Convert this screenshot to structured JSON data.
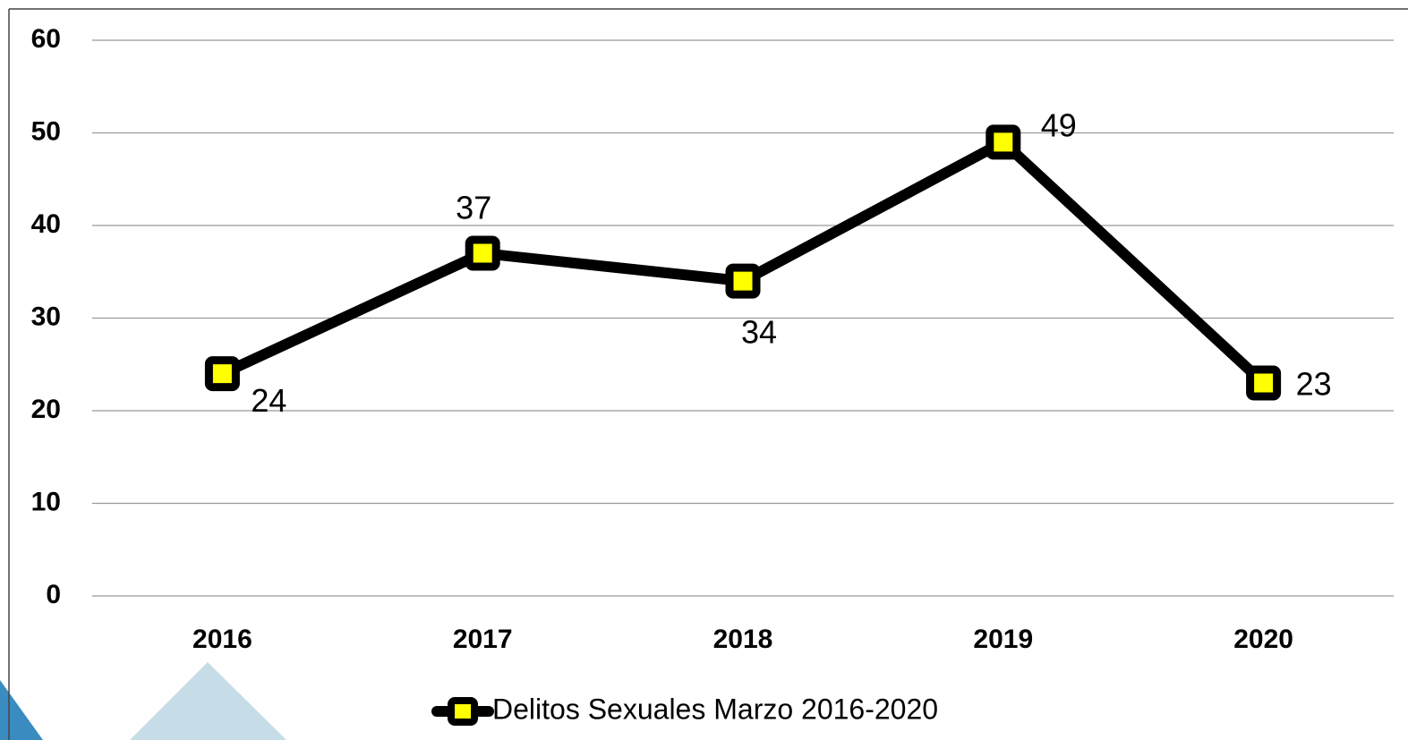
{
  "chart_data": {
    "type": "line",
    "categories": [
      "2016",
      "2017",
      "2018",
      "2019",
      "2020"
    ],
    "series": [
      {
        "name": "Delitos Sexuales Marzo 2016-2020",
        "color": "#000000",
        "marker_color": "#ffff00",
        "values": [
          24,
          37,
          34,
          49,
          23
        ]
      }
    ],
    "ylim": [
      0,
      60
    ],
    "yticks": [
      0,
      10,
      20,
      30,
      40,
      50,
      60
    ],
    "grid": true,
    "legend": "bottom"
  }
}
